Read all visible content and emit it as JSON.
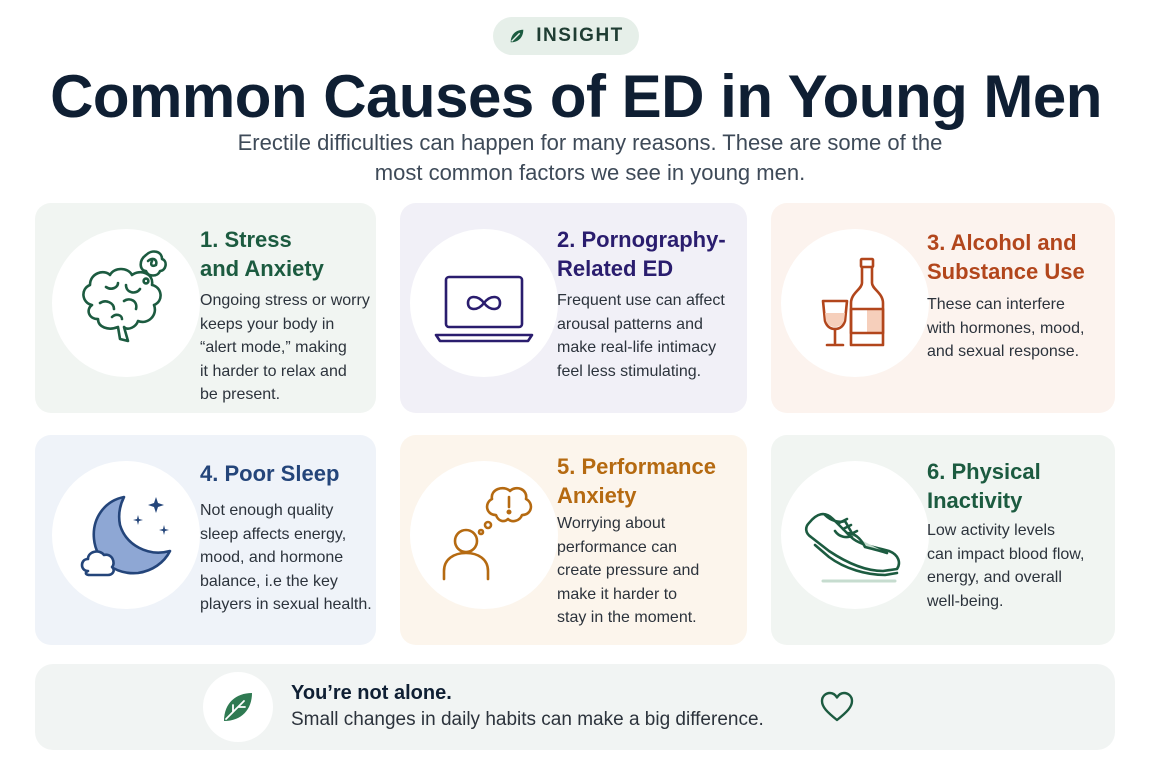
{
  "badge": {
    "label": "INSIGHT",
    "icon": "leaf-icon"
  },
  "title": "Common Causes of ED in Young Men",
  "subtitle_line1": "Erectile difficulties can happen for many reasons. These are some of the",
  "subtitle_line2": "most common factors we see in young men.",
  "colors": {
    "green": "#1c5b40",
    "navy": "#2a1d6e",
    "orange": "#b2461c",
    "blue": "#24457a",
    "amber": "#b56a11"
  },
  "cards": [
    {
      "title1": "1. Stress",
      "title2": "and Anxiety",
      "icon": "brain-icon",
      "lines": [
        "Ongoing stress or worry",
        "keeps your body in",
        "“alert mode,” making",
        "it harder to relax and",
        "be present."
      ]
    },
    {
      "title1": "2. Pornography-",
      "title2": "Related ED",
      "icon": "laptop-infinity-icon",
      "lines": [
        "Frequent use can affect",
        "arousal patterns and",
        "make real-life intimacy",
        "feel less stimulating."
      ]
    },
    {
      "title1": "3. Alcohol and",
      "title2": "Substance Use",
      "icon": "bottle-glass-icon",
      "lines": [
        "These can interfere",
        "with hormones, mood,",
        "and sexual response."
      ]
    },
    {
      "title1": "4. Poor Sleep",
      "title2": "",
      "icon": "moon-cloud-icon",
      "lines": [
        "Not enough quality",
        "sleep affects energy,",
        "mood, and hormone",
        "balance, i.e the key",
        "players in sexual health."
      ]
    },
    {
      "title1": "5. Performance",
      "title2": "Anxiety",
      "icon": "thought-person-icon",
      "lines": [
        "Worrying about",
        "performance can",
        "create pressure and",
        "make it harder to",
        "stay in the moment."
      ]
    },
    {
      "title1": "6. Physical",
      "title2": "Inactivity",
      "icon": "sneaker-icon",
      "lines": [
        "Low activity levels",
        "can impact blood flow,",
        "energy, and overall",
        "well-being."
      ]
    }
  ],
  "footer": {
    "title": "You’re not alone.",
    "text": "Small changes in daily habits can make a big difference.",
    "icon": "leaf-icon",
    "end_icon": "heart-icon"
  }
}
